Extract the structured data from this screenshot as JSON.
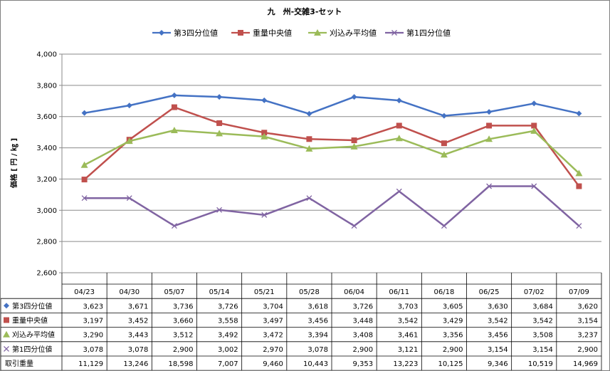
{
  "chart_data": {
    "type": "line",
    "title": "九　州-交雑3-セット",
    "ylabel": "価格 [ 円 / ㎏ ]",
    "ylim": [
      2600,
      4000
    ],
    "yticks": [
      "4,000",
      "3,800",
      "3,600",
      "3,400",
      "3,200",
      "3,000",
      "2,800",
      "2,600"
    ],
    "ytick_values": [
      4000,
      3800,
      3600,
      3400,
      3200,
      3000,
      2800,
      2600
    ],
    "grid": true,
    "legend_position": "top",
    "categories": [
      "04/23",
      "04/30",
      "05/07",
      "05/14",
      "05/21",
      "05/28",
      "06/04",
      "06/11",
      "06/18",
      "06/25",
      "07/02",
      "07/09"
    ],
    "series": [
      {
        "name": "第3四分位値",
        "color": "#4472c4",
        "marker": "diamond",
        "values": [
          3623,
          3671,
          3736,
          3726,
          3704,
          3618,
          3726,
          3703,
          3605,
          3630,
          3684,
          3620
        ],
        "labels": [
          "3,623",
          "3,671",
          "3,736",
          "3,726",
          "3,704",
          "3,618",
          "3,726",
          "3,703",
          "3,605",
          "3,630",
          "3,684",
          "3,620"
        ]
      },
      {
        "name": "重量中央値",
        "color": "#c0504d",
        "marker": "square",
        "values": [
          3197,
          3452,
          3660,
          3558,
          3497,
          3456,
          3448,
          3542,
          3429,
          3542,
          3542,
          3154
        ],
        "labels": [
          "3,197",
          "3,452",
          "3,660",
          "3,558",
          "3,497",
          "3,456",
          "3,448",
          "3,542",
          "3,429",
          "3,542",
          "3,542",
          "3,154"
        ]
      },
      {
        "name": "刈込み平均値",
        "color": "#9bbb59",
        "marker": "triangle",
        "values": [
          3290,
          3443,
          3512,
          3492,
          3472,
          3394,
          3408,
          3461,
          3356,
          3456,
          3508,
          3237
        ],
        "labels": [
          "3,290",
          "3,443",
          "3,512",
          "3,492",
          "3,472",
          "3,394",
          "3,408",
          "3,461",
          "3,356",
          "3,456",
          "3,508",
          "3,237"
        ]
      },
      {
        "name": "第1四分位値",
        "color": "#8064a2",
        "marker": "x",
        "values": [
          3078,
          3078,
          2900,
          3002,
          2970,
          3078,
          2900,
          3121,
          2900,
          3154,
          3154,
          2900
        ],
        "labels": [
          "3,078",
          "3,078",
          "2,900",
          "3,002",
          "2,970",
          "3,078",
          "2,900",
          "3,121",
          "2,900",
          "3,154",
          "3,154",
          "2,900"
        ]
      }
    ],
    "table_extra_row": {
      "name": "取引重量",
      "labels": [
        "11,129",
        "13,246",
        "18,598",
        "7,007",
        "9,460",
        "10,443",
        "9,353",
        "13,223",
        "10,125",
        "9,346",
        "10,519",
        "14,969"
      ]
    }
  }
}
